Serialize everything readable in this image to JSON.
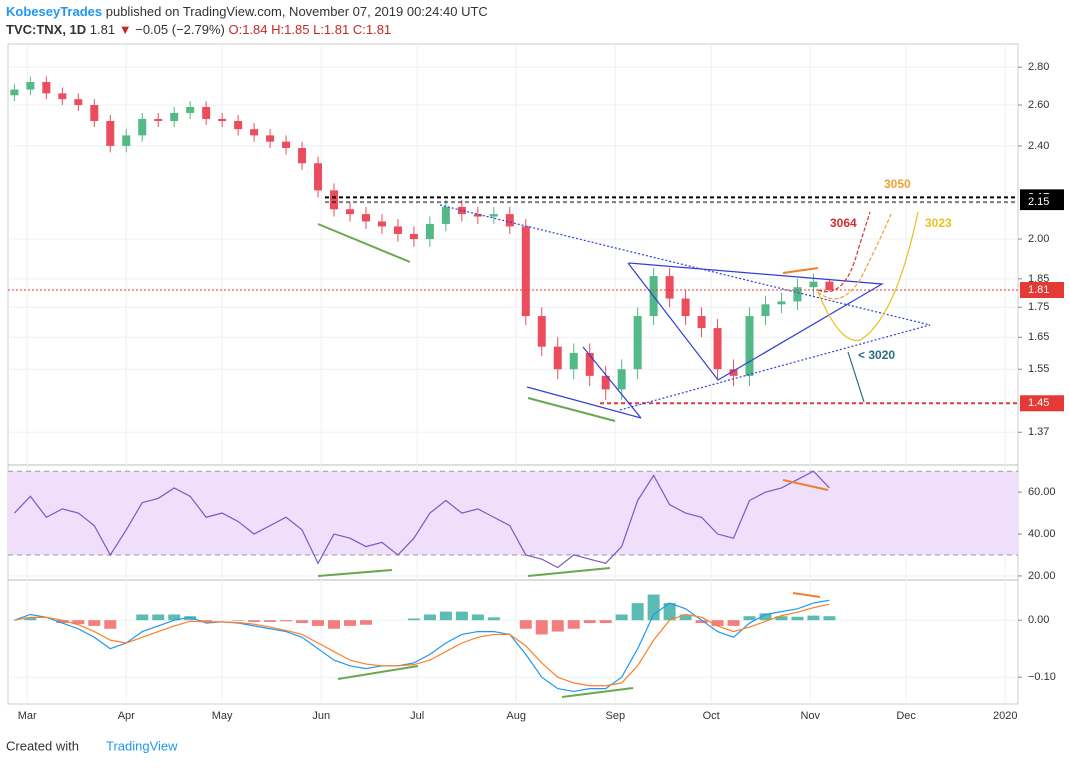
{
  "header": {
    "publisher": "KobeseyTrades",
    "published": "published on TradingView.com, November 07, 2019 00:24:40 UTC",
    "symbol": "TVC:TNX, 1D",
    "last": "1.81",
    "change": "−0.05 (−2.79%)",
    "ohlc": [
      "O:1.84",
      "H:1.85",
      "L:1.81",
      "C:1.81"
    ]
  },
  "footer": {
    "created": "Created with",
    "brand": "TradingView"
  },
  "chart_data": {
    "type": "candlestick",
    "log_scale": true,
    "grid": true,
    "up_color": "#53b987",
    "down_color": "#eb4d5c",
    "x": [
      -4,
      1,
      6,
      11,
      16,
      21,
      26,
      31,
      36,
      41,
      46,
      51,
      56,
      61,
      66,
      71,
      76,
      81,
      86,
      91,
      96,
      101,
      106,
      111,
      116,
      121,
      126,
      131,
      136,
      141,
      146,
      151,
      156,
      161,
      166,
      171,
      176,
      181,
      186,
      191,
      196,
      201,
      206,
      211,
      216,
      221,
      226,
      231,
      236,
      241,
      246,
      251
    ],
    "open": [
      2.65,
      2.68,
      2.72,
      2.66,
      2.63,
      2.6,
      2.52,
      2.4,
      2.45,
      2.53,
      2.52,
      2.56,
      2.59,
      2.53,
      2.52,
      2.48,
      2.45,
      2.42,
      2.39,
      2.32,
      2.2,
      2.12,
      2.1,
      2.07,
      2.05,
      2.02,
      2.0,
      2.06,
      2.13,
      2.1,
      2.09,
      2.1,
      2.05,
      1.72,
      1.62,
      1.55,
      1.6,
      1.53,
      1.49,
      1.55,
      1.72,
      1.86,
      1.78,
      1.72,
      1.68,
      1.55,
      1.53,
      1.72,
      1.76,
      1.77,
      1.82,
      1.84
    ],
    "high": [
      2.71,
      2.75,
      2.75,
      2.69,
      2.66,
      2.63,
      2.55,
      2.48,
      2.56,
      2.56,
      2.59,
      2.62,
      2.62,
      2.56,
      2.55,
      2.51,
      2.48,
      2.45,
      2.42,
      2.35,
      2.23,
      2.15,
      2.13,
      2.1,
      2.08,
      2.05,
      2.09,
      2.16,
      2.16,
      2.13,
      2.13,
      2.13,
      2.08,
      1.75,
      1.65,
      1.63,
      1.63,
      1.56,
      1.58,
      1.75,
      1.89,
      1.89,
      1.81,
      1.75,
      1.71,
      1.58,
      1.75,
      1.79,
      1.8,
      1.85,
      1.87,
      1.85
    ],
    "low": [
      2.62,
      2.65,
      2.63,
      2.6,
      2.57,
      2.49,
      2.37,
      2.37,
      2.42,
      2.49,
      2.49,
      2.53,
      2.5,
      2.49,
      2.45,
      2.42,
      2.39,
      2.36,
      2.29,
      2.17,
      2.09,
      2.07,
      2.04,
      2.02,
      1.99,
      1.97,
      1.97,
      2.03,
      2.07,
      2.06,
      2.06,
      2.02,
      1.69,
      1.59,
      1.52,
      1.52,
      1.5,
      1.46,
      1.46,
      1.52,
      1.69,
      1.75,
      1.69,
      1.65,
      1.52,
      1.5,
      1.5,
      1.69,
      1.73,
      1.74,
      1.79,
      1.81
    ],
    "close": [
      2.68,
      2.72,
      2.66,
      2.63,
      2.6,
      2.52,
      2.4,
      2.45,
      2.53,
      2.52,
      2.56,
      2.59,
      2.53,
      2.52,
      2.48,
      2.45,
      2.42,
      2.39,
      2.32,
      2.2,
      2.12,
      2.1,
      2.07,
      2.05,
      2.02,
      2.0,
      2.06,
      2.13,
      2.1,
      2.09,
      2.1,
      2.05,
      1.72,
      1.62,
      1.55,
      1.6,
      1.53,
      1.49,
      1.55,
      1.72,
      1.86,
      1.78,
      1.72,
      1.68,
      1.55,
      1.53,
      1.72,
      1.76,
      1.77,
      1.82,
      1.84,
      1.81
    ],
    "xlim": [
      -6,
      310
    ],
    "xticks": [
      {
        "value": 0,
        "label": "Mar"
      },
      {
        "value": 31,
        "label": "Apr"
      },
      {
        "value": 61,
        "label": "May"
      },
      {
        "value": 92,
        "label": "Jun"
      },
      {
        "value": 122,
        "label": "Jul"
      },
      {
        "value": 153,
        "label": "Aug"
      },
      {
        "value": 184,
        "label": "Sep"
      },
      {
        "value": 214,
        "label": "Oct"
      },
      {
        "value": 245,
        "label": "Nov"
      },
      {
        "value": 275,
        "label": "Dec"
      },
      {
        "value": 306,
        "label": "2020"
      }
    ],
    "ylim": [
      1.29,
      2.93
    ],
    "yticks": [
      {
        "value": 2.8,
        "label": "2.80"
      },
      {
        "value": 2.6,
        "label": "2.60"
      },
      {
        "value": 2.4,
        "label": "2.40"
      },
      {
        "value": 2.0,
        "label": "2.00"
      },
      {
        "value": 1.85,
        "label": "1.85"
      },
      {
        "value": 1.75,
        "label": "1.75"
      },
      {
        "value": 1.65,
        "label": "1.65"
      },
      {
        "value": 1.55,
        "label": "1.55"
      },
      {
        "value": 1.37,
        "label": "1.37"
      }
    ],
    "levels": [
      {
        "value": 2.17,
        "color": "#000000"
      },
      {
        "value": 2.15,
        "color": "#000000"
      },
      {
        "value": 1.81,
        "color": "#e53935"
      },
      {
        "value": 1.45,
        "color": "#e53935"
      }
    ],
    "annotations": [
      {
        "text": "3064",
        "color": "#d32f2f"
      },
      {
        "text": "3050",
        "color": "#f0a030"
      },
      {
        "text": "3023",
        "color": "#e8c020"
      },
      {
        "text": "< 3020",
        "color": "#2a6f7f"
      }
    ],
    "rsi": {
      "color": "#7e57c2",
      "band_color": "#f0dffb",
      "bands": [
        30,
        70
      ],
      "ylim": [
        19,
        72
      ],
      "yticks": [
        {
          "value": 60,
          "label": "60.00"
        },
        {
          "value": 40,
          "label": "40.00"
        },
        {
          "value": 20,
          "label": "20.00"
        }
      ],
      "values": [
        50,
        58,
        48,
        52,
        50,
        44,
        30,
        42,
        55,
        57,
        62,
        58,
        48,
        50,
        46,
        40,
        44,
        48,
        42,
        26,
        40,
        38,
        34,
        36,
        30,
        38,
        50,
        56,
        50,
        52,
        48,
        44,
        30,
        28,
        24,
        30,
        28,
        26,
        34,
        56,
        68,
        54,
        50,
        48,
        40,
        38,
        56,
        60,
        62,
        66,
        70,
        62
      ]
    },
    "macd": {
      "ylim": [
        -0.14,
        0.067
      ],
      "macd_color": "#2196f3",
      "signal_color": "#ff7f27",
      "pos_color": "#26a69a",
      "neg_color": "#ef5350",
      "yticks": [
        {
          "value": 0,
          "label": "0.00"
        },
        {
          "value": -0.1,
          "label": "−0.10"
        }
      ],
      "macd": [
        0,
        0.01,
        0.005,
        -0.005,
        -0.015,
        -0.03,
        -0.05,
        -0.04,
        -0.02,
        -0.01,
        0,
        0.005,
        -0.005,
        -0.003,
        -0.005,
        -0.01,
        -0.015,
        -0.02,
        -0.03,
        -0.05,
        -0.07,
        -0.08,
        -0.085,
        -0.08,
        -0.08,
        -0.075,
        -0.06,
        -0.04,
        -0.025,
        -0.02,
        -0.02,
        -0.025,
        -0.06,
        -0.1,
        -0.12,
        -0.125,
        -0.12,
        -0.12,
        -0.1,
        -0.05,
        0.01,
        0.03,
        0.02,
        0,
        -0.02,
        -0.03,
        -0.005,
        0.01,
        0.015,
        0.02,
        0.03,
        0.035
      ],
      "signal": [
        0,
        0.005,
        0.005,
        0,
        -0.008,
        -0.02,
        -0.035,
        -0.04,
        -0.03,
        -0.02,
        -0.01,
        -0.002,
        -0.003,
        -0.003,
        -0.004,
        -0.007,
        -0.012,
        -0.018,
        -0.025,
        -0.04,
        -0.055,
        -0.07,
        -0.077,
        -0.08,
        -0.08,
        -0.078,
        -0.07,
        -0.055,
        -0.04,
        -0.03,
        -0.025,
        -0.025,
        -0.045,
        -0.075,
        -0.1,
        -0.11,
        -0.115,
        -0.115,
        -0.11,
        -0.08,
        -0.035,
        0,
        0.01,
        0.005,
        -0.01,
        -0.02,
        -0.012,
        -0.002,
        0.008,
        0.014,
        0.022,
        0.028
      ],
      "histogram": [
        0,
        0.005,
        0,
        -0.005,
        -0.007,
        -0.01,
        -0.015,
        0,
        0.01,
        0.01,
        0.01,
        0.007,
        -0.002,
        0,
        -0.001,
        -0.003,
        -0.003,
        -0.002,
        -0.005,
        -0.01,
        -0.015,
        -0.01,
        -0.008,
        0,
        0,
        0.003,
        0.01,
        0.015,
        0.015,
        0.01,
        0.005,
        0,
        -0.015,
        -0.025,
        -0.02,
        -0.015,
        -0.005,
        -0.005,
        0.01,
        0.03,
        0.045,
        0.03,
        0.01,
        -0.005,
        -0.01,
        -0.01,
        0.007,
        0.012,
        0.007,
        0.006,
        0.008,
        0.007
      ]
    }
  }
}
